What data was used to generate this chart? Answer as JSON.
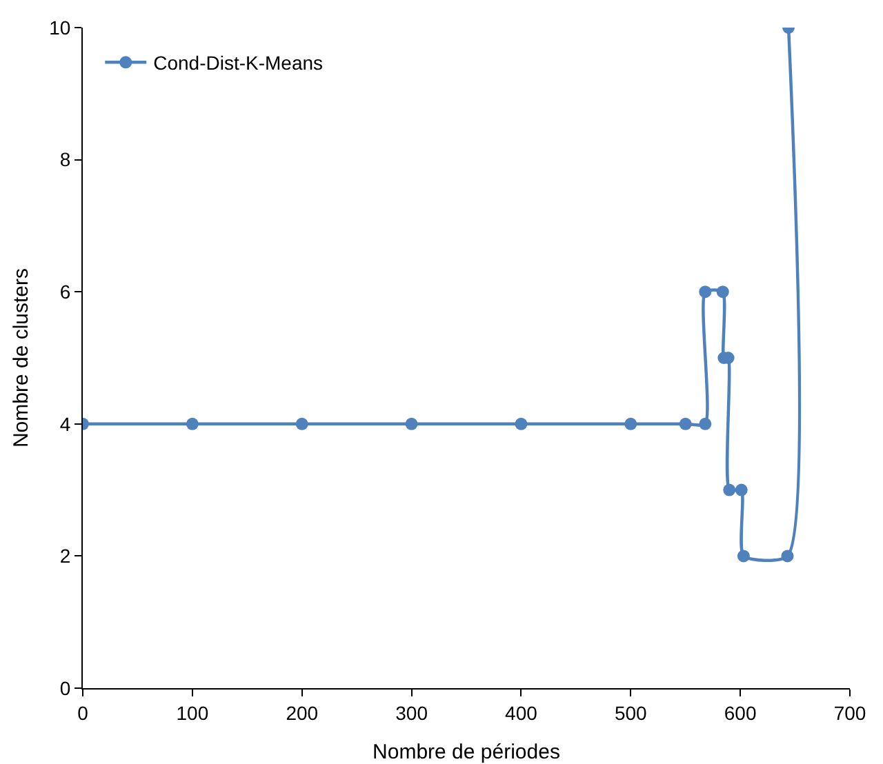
{
  "chart_data": {
    "type": "line",
    "xlabel": "Nombre de périodes",
    "ylabel": "Nombre de clusters",
    "x": [
      0,
      100,
      200,
      300,
      400,
      500,
      550,
      568,
      568,
      584,
      585,
      589,
      590,
      601,
      603,
      643,
      644
    ],
    "series": [
      {
        "name": "Cond-Dist-K-Means",
        "color": "#4f81bd",
        "values": [
          4,
          4,
          4,
          4,
          4,
          4,
          4,
          4,
          6,
          6,
          5,
          5,
          3,
          3,
          2,
          2,
          10
        ]
      }
    ],
    "xlim": [
      0,
      700
    ],
    "xticks": [
      0,
      100,
      200,
      300,
      400,
      500,
      600,
      700
    ],
    "ylim": [
      0,
      10
    ],
    "yticks": [
      0,
      2,
      4,
      6,
      8,
      10
    ],
    "grid": false,
    "legend": "top left",
    "marker": "circle",
    "line_style": "solid"
  }
}
